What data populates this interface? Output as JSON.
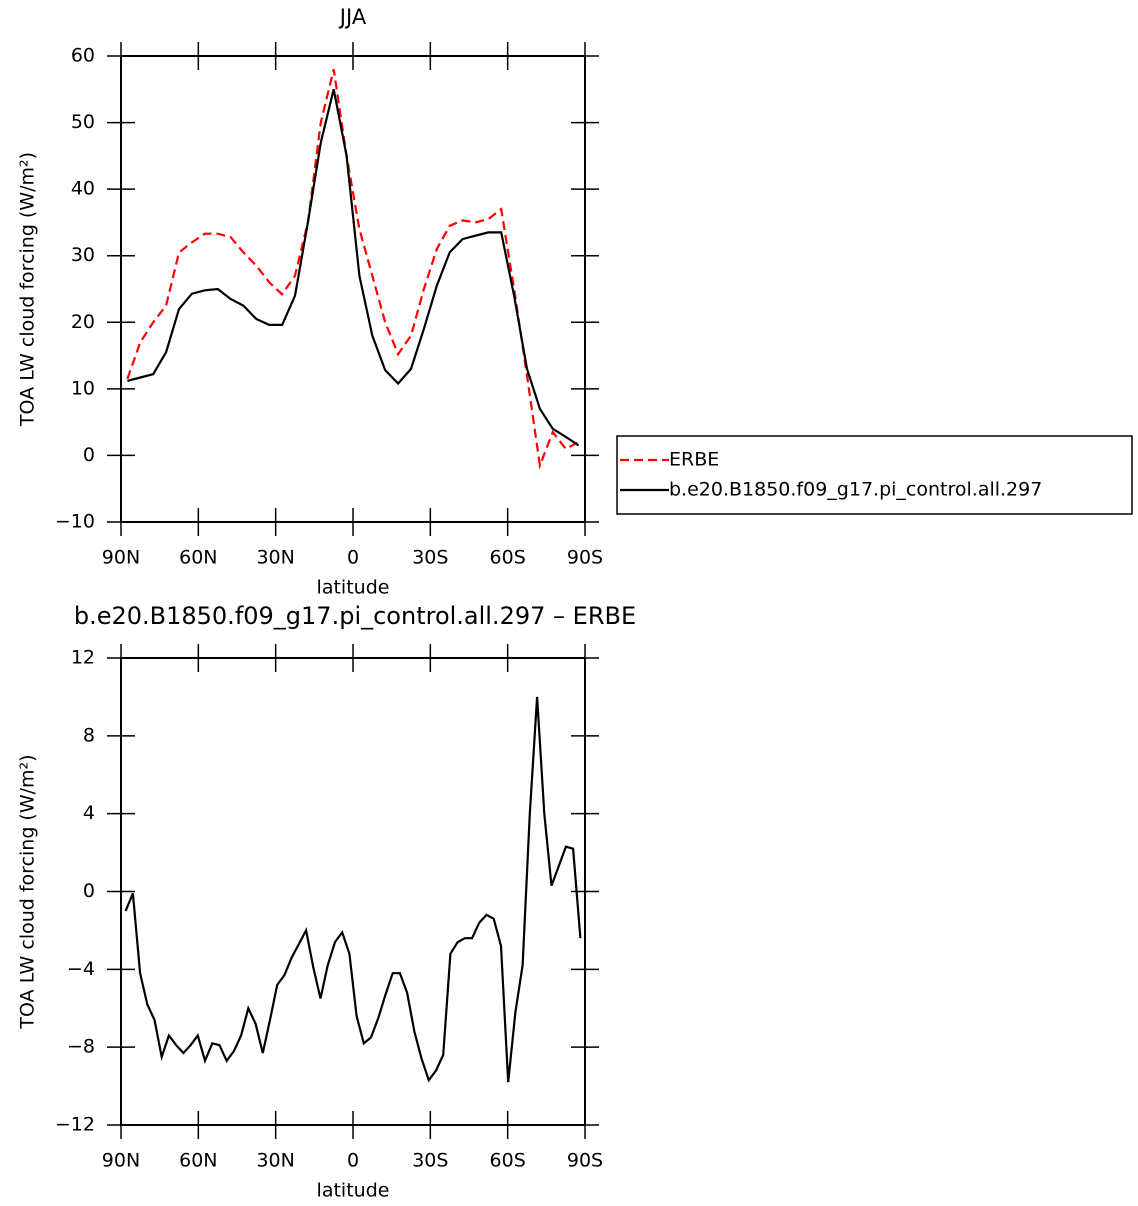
{
  "chart_data": [
    {
      "type": "line",
      "title": "JJA",
      "xlabel": "latitude",
      "ylabel": "TOA LW cloud forcing (W/m²)",
      "x": [
        87.5,
        82.5,
        77.5,
        72.5,
        67.5,
        62.5,
        57.5,
        52.5,
        47.5,
        42.5,
        37.5,
        32.5,
        27.5,
        22.5,
        17.5,
        12.5,
        7.5,
        2.5,
        -2.5,
        -7.5,
        -12.5,
        -17.5,
        -22.5,
        -27.5,
        -32.5,
        -37.5,
        -42.5,
        -47.5,
        -52.5,
        -57.5,
        -62.5,
        -67.5,
        -72.5,
        -77.5,
        -82.5,
        -87.5
      ],
      "series": [
        {
          "name": "ERBE",
          "color": "#ff0000",
          "linestyle": "dashed",
          "values": [
            11.5,
            17,
            20,
            22.5,
            30.5,
            32,
            33.3,
            33.3,
            32.8,
            30.5,
            28.5,
            26,
            24.2,
            27,
            35,
            50,
            58,
            45,
            34,
            27,
            20,
            15.2,
            18,
            25,
            31,
            34.5,
            35.3,
            35,
            35.5,
            37,
            25,
            12,
            -1.5,
            3.5,
            1,
            2
          ]
        },
        {
          "name": "b.e20.B1850.f09_g17.pi_control.all.297",
          "color": "#000000",
          "linestyle": "solid",
          "values": [
            11.2,
            11.7,
            12.2,
            15.5,
            22,
            24.3,
            24.8,
            25,
            23.5,
            22.5,
            20.5,
            19.6,
            19.6,
            24,
            35,
            47,
            55,
            45,
            27,
            18,
            12.8,
            10.8,
            13,
            19,
            25.5,
            30.5,
            32.5,
            33,
            33.5,
            33.5,
            24,
            13,
            7,
            4,
            2.8,
            1.5
          ]
        }
      ],
      "xlim": [
        90,
        -90
      ],
      "xticks": [
        {
          "value": 90,
          "label": "90N"
        },
        {
          "value": 60,
          "label": "60N"
        },
        {
          "value": 30,
          "label": "30N"
        },
        0,
        {
          "value": -30,
          "label": "30S"
        },
        {
          "value": -60,
          "label": "60S"
        },
        {
          "value": -90,
          "label": "90S"
        }
      ],
      "ylim": [
        -10,
        60
      ],
      "yticks": [
        {
          "value": -10,
          "label": "−10"
        },
        0,
        10,
        20,
        30,
        40,
        50,
        60
      ],
      "legend": "right"
    },
    {
      "type": "line",
      "title": "b.e20.B1850.f09_g17.pi_control.all.297 – ERBE",
      "xlabel": "latitude",
      "ylabel": "TOA LW cloud forcing (W/m²)",
      "x": [
        88.2,
        85.4,
        82.6,
        79.8,
        77.0,
        74.2,
        71.4,
        68.6,
        65.8,
        63.0,
        60.2,
        57.4,
        54.6,
        51.8,
        49.0,
        46.2,
        43.4,
        40.6,
        37.8,
        35.0,
        32.2,
        29.4,
        26.6,
        23.8,
        21.0,
        18.2,
        15.4,
        12.6,
        9.8,
        7.0,
        4.2,
        1.4,
        -1.4,
        -4.2,
        -7.0,
        -9.8,
        -12.6,
        -15.4,
        -18.2,
        -21.0,
        -23.8,
        -26.6,
        -29.4,
        -32.2,
        -35.0,
        -37.8,
        -40.6,
        -43.4,
        -46.2,
        -49.0,
        -51.8,
        -54.6,
        -57.4,
        -60.2,
        -63.0,
        -65.8,
        -68.6,
        -71.4,
        -74.2,
        -77.0,
        -79.8,
        -82.6,
        -85.4,
        -88.2
      ],
      "series": [
        {
          "color": "#000000",
          "linestyle": "solid",
          "values": [
            -1.0,
            -0.1,
            -4.2,
            -5.8,
            -6.6,
            -8.5,
            -7.4,
            -7.9,
            -8.3,
            -7.9,
            -7.4,
            -8.7,
            -7.8,
            -7.9,
            -8.7,
            -8.2,
            -7.4,
            -6.0,
            -6.8,
            -8.3,
            -6.6,
            -4.8,
            -4.3,
            -3.4,
            -2.7,
            -2.0,
            -3.9,
            -5.5,
            -3.8,
            -2.6,
            -2.1,
            -3.2,
            -6.4,
            -7.8,
            -7.5,
            -6.5,
            -5.3,
            -4.2,
            -4.2,
            -5.2,
            -7.2,
            -8.6,
            -9.7,
            -9.2,
            -8.4,
            -3.2,
            -2.6,
            -2.4,
            -2.4,
            -1.6,
            -1.2,
            -1.4,
            -2.8,
            -9.8,
            -6.2,
            -3.8,
            4,
            10,
            4,
            0.3,
            1.3,
            2.3,
            2.2,
            -2.4
          ]
        }
      ],
      "xlim": [
        90,
        -90
      ],
      "xticks": [
        {
          "value": 90,
          "label": "90N"
        },
        {
          "value": 60,
          "label": "60N"
        },
        {
          "value": 30,
          "label": "30N"
        },
        0,
        {
          "value": -30,
          "label": "30S"
        },
        {
          "value": -60,
          "label": "60S"
        },
        {
          "value": -90,
          "label": "90S"
        }
      ],
      "ylim": [
        -12,
        12
      ],
      "yticks": [
        {
          "value": -12,
          "label": "−12"
        },
        {
          "value": -8,
          "label": "−8"
        },
        {
          "value": -4,
          "label": "−4"
        },
        0,
        4,
        8,
        12
      ]
    }
  ]
}
